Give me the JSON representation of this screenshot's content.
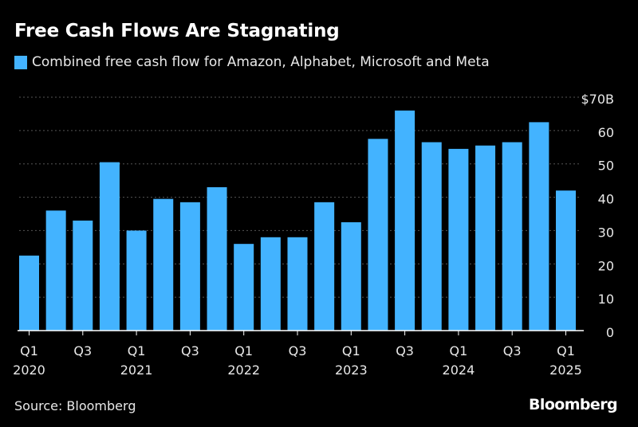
{
  "title": "Free Cash Flows Are Stagnating",
  "legend": {
    "label": "Combined free cash flow for Amazon, Alphabet, Microsoft and Meta",
    "color": "#43b3ff"
  },
  "source": "Source: Bloomberg",
  "brand": "Bloomberg",
  "chart_data": {
    "type": "bar",
    "categories": [
      "Q1 2020",
      "Q2 2020",
      "Q3 2020",
      "Q4 2020",
      "Q1 2021",
      "Q2 2021",
      "Q3 2021",
      "Q4 2021",
      "Q1 2022",
      "Q2 2022",
      "Q3 2022",
      "Q4 2022",
      "Q1 2023",
      "Q2 2023",
      "Q3 2023",
      "Q4 2023",
      "Q1 2024",
      "Q2 2024",
      "Q3 2024",
      "Q4 2024",
      "Q1 2025"
    ],
    "series": [
      {
        "name": "Combined free cash flow for Amazon, Alphabet, Microsoft and Meta",
        "values": [
          22.5,
          36,
          33,
          50.5,
          30,
          39.5,
          38.5,
          43,
          26,
          28,
          28,
          38.5,
          32.5,
          57.5,
          66,
          56.5,
          54.5,
          55.5,
          56.5,
          62.5,
          42
        ]
      }
    ],
    "ylim": [
      0,
      70
    ],
    "yticks": [
      {
        "value": 70,
        "label": "$70B"
      },
      {
        "value": 60,
        "label": "60"
      },
      {
        "value": 50,
        "label": "50"
      },
      {
        "value": 40,
        "label": "40"
      },
      {
        "value": 30,
        "label": "30"
      },
      {
        "value": 20,
        "label": "20"
      },
      {
        "value": 10,
        "label": "10"
      },
      {
        "value": 0,
        "label": "0"
      }
    ],
    "xticks": [
      {
        "index": 0,
        "quarter": "Q1",
        "year": "2020"
      },
      {
        "index": 2,
        "quarter": "Q3",
        "year": ""
      },
      {
        "index": 4,
        "quarter": "Q1",
        "year": "2021"
      },
      {
        "index": 6,
        "quarter": "Q3",
        "year": ""
      },
      {
        "index": 8,
        "quarter": "Q1",
        "year": "2022"
      },
      {
        "index": 10,
        "quarter": "Q3",
        "year": ""
      },
      {
        "index": 12,
        "quarter": "Q1",
        "year": "2023"
      },
      {
        "index": 14,
        "quarter": "Q3",
        "year": ""
      },
      {
        "index": 16,
        "quarter": "Q1",
        "year": "2024"
      },
      {
        "index": 18,
        "quarter": "Q3",
        "year": ""
      },
      {
        "index": 20,
        "quarter": "Q1",
        "year": "2025"
      }
    ],
    "grid": true,
    "gridColor": "#555555",
    "barColor": "#43b3ff"
  }
}
